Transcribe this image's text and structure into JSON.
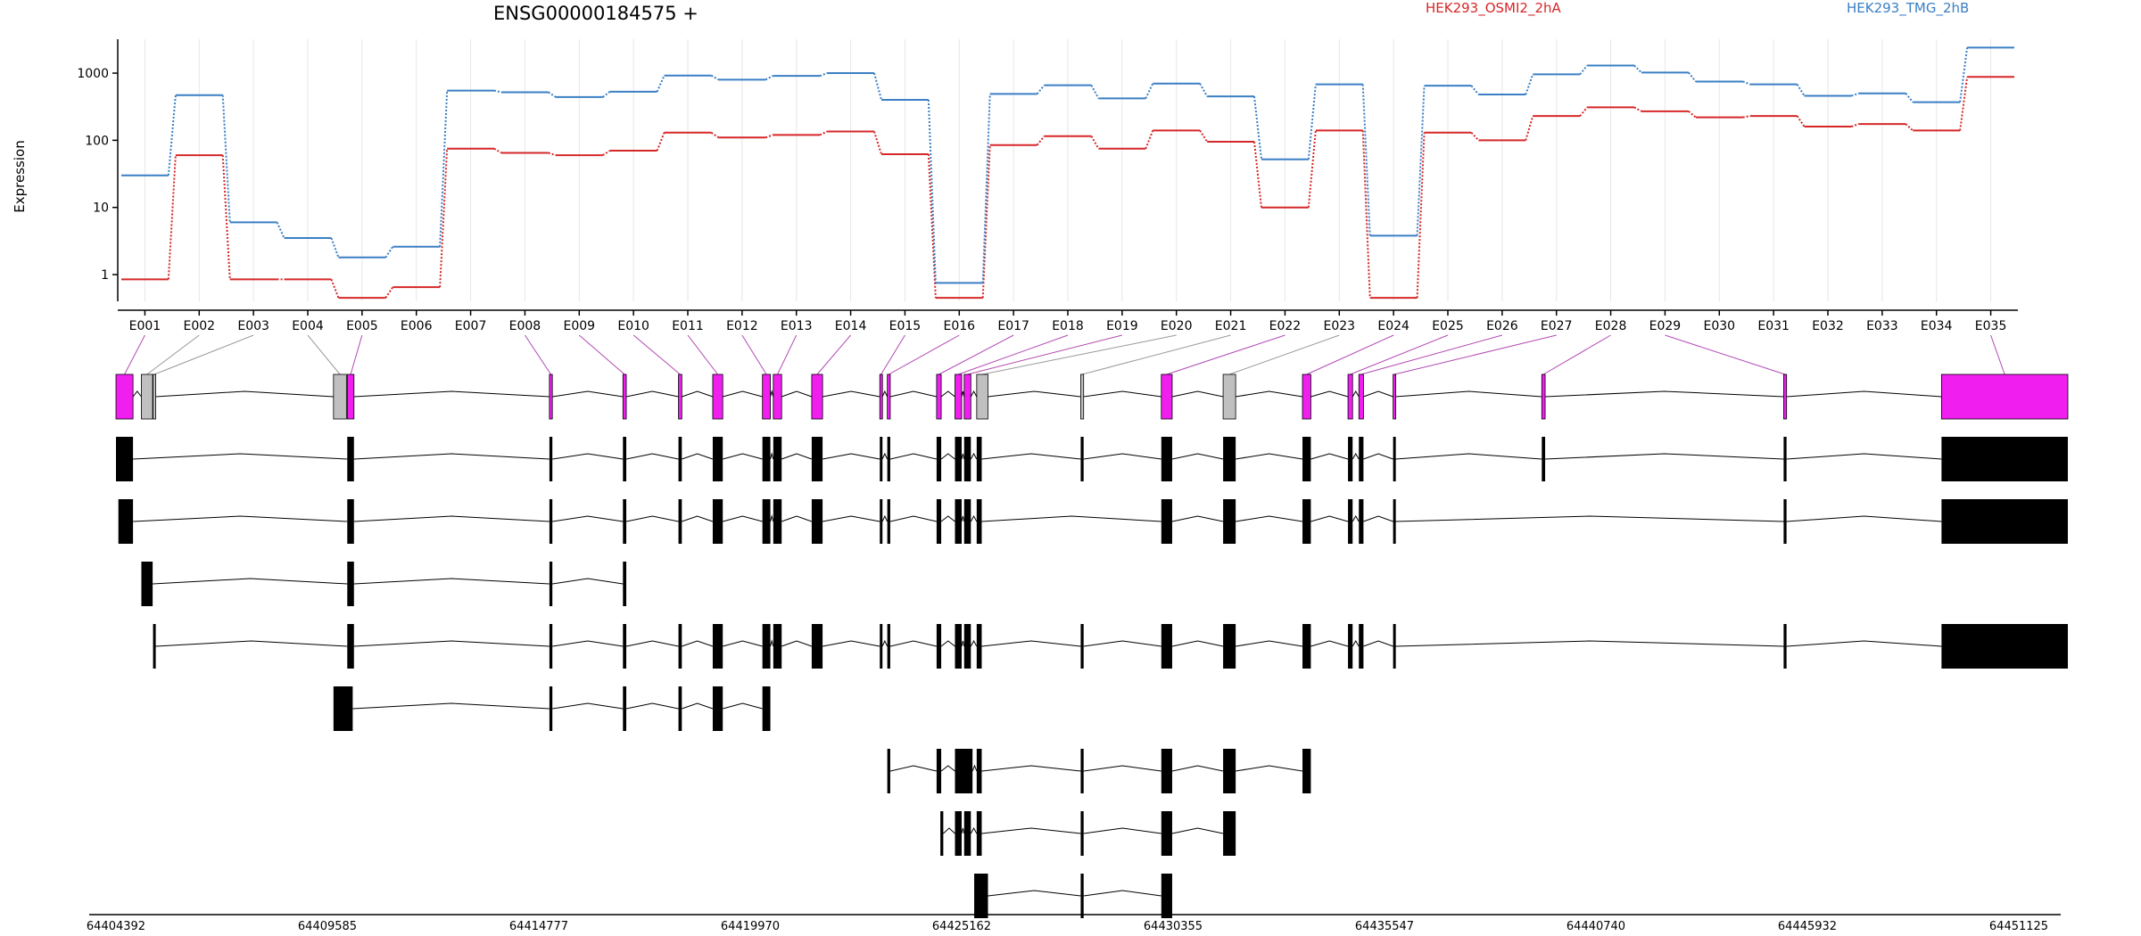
{
  "chart_data": {
    "type": "line",
    "title": "ENSG00000184575 +",
    "ylabel": "Expression",
    "y_scale": "log",
    "y_ticks": [
      "1",
      "10",
      "100",
      "1000"
    ],
    "y_tick_values": [
      1,
      10,
      100,
      1000
    ],
    "ylim": [
      0.4,
      3200
    ],
    "grid": "vertical",
    "legend_placement": "top",
    "exons": [
      "E001",
      "E002",
      "E003",
      "E004",
      "E005",
      "E006",
      "E007",
      "E008",
      "E009",
      "E010",
      "E011",
      "E012",
      "E013",
      "E014",
      "E015",
      "E016",
      "E017",
      "E018",
      "E019",
      "E020",
      "E021",
      "E022",
      "E023",
      "E024",
      "E025",
      "E026",
      "E027",
      "E028",
      "E029",
      "E030",
      "E031",
      "E032",
      "E033",
      "E034",
      "E035"
    ],
    "series": [
      {
        "name": "HEK293_OSMI2_2hA",
        "color": "#d62728",
        "values": [
          0.85,
          60,
          0.85,
          0.85,
          0.45,
          0.65,
          75,
          65,
          60,
          70,
          130,
          110,
          120,
          135,
          62,
          0.45,
          85,
          115,
          75,
          140,
          95,
          10,
          140,
          0.45,
          130,
          100,
          230,
          310,
          270,
          220,
          230,
          160,
          175,
          140,
          880
        ]
      },
      {
        "name": "HEK293_TMG_2hB",
        "color": "#3a7fc4",
        "values": [
          30,
          470,
          6,
          3.5,
          1.8,
          2.6,
          550,
          520,
          440,
          530,
          920,
          800,
          910,
          1000,
          400,
          0.75,
          490,
          660,
          420,
          700,
          450,
          52,
          680,
          3.8,
          650,
          480,
          960,
          1300,
          1020,
          750,
          680,
          460,
          500,
          370,
          2400
        ]
      }
    ],
    "genomic_ticks": [
      64404392,
      64409585,
      64414777,
      64419970,
      64425162,
      64430355,
      64435547,
      64440740,
      64445932,
      64451125
    ],
    "gene_model": {
      "feature_color": "#f01ff0",
      "other_color": "#c0c0c0",
      "features": [
        {
          "start": 64404392,
          "end": 64404800,
          "exon": "E001",
          "highlighted": true
        },
        {
          "start": 64405000,
          "end": 64405270,
          "exon": "E002",
          "highlighted": false
        },
        {
          "start": 64405280,
          "end": 64405340,
          "exon": "E003",
          "highlighted": false
        },
        {
          "start": 64409600,
          "end": 64409910,
          "exon": "E004",
          "highlighted": false
        },
        {
          "start": 64409930,
          "end": 64410090,
          "exon": "E005",
          "highlighted": true
        },
        {
          "start": 64414770,
          "end": 64414840,
          "exon": "E008",
          "highlighted": true
        },
        {
          "start": 64416530,
          "end": 64416610,
          "exon": "E009",
          "highlighted": true
        },
        {
          "start": 64417860,
          "end": 64417940,
          "exon": "E010",
          "highlighted": true
        },
        {
          "start": 64418680,
          "end": 64418920,
          "exon": "E011",
          "highlighted": true
        },
        {
          "start": 64419870,
          "end": 64420060,
          "exon": "E012",
          "highlighted": true
        },
        {
          "start": 64420130,
          "end": 64420330,
          "exon": "E013",
          "highlighted": true
        },
        {
          "start": 64421050,
          "end": 64421310,
          "exon": "E014",
          "highlighted": true
        },
        {
          "start": 64422680,
          "end": 64422740,
          "exon": "E015",
          "highlighted": true
        },
        {
          "start": 64422860,
          "end": 64422930,
          "exon": "E016",
          "highlighted": true
        },
        {
          "start": 64424040,
          "end": 64424150,
          "exon": "E017",
          "highlighted": true
        },
        {
          "start": 64424480,
          "end": 64424640,
          "exon": "E018",
          "highlighted": true
        },
        {
          "start": 64424700,
          "end": 64424860,
          "exon": "E019",
          "highlighted": true
        },
        {
          "start": 64425000,
          "end": 64425270,
          "exon": "E020",
          "highlighted": false
        },
        {
          "start": 64427490,
          "end": 64427560,
          "exon": "E021",
          "highlighted": false
        },
        {
          "start": 64429420,
          "end": 64429680,
          "exon": "E022",
          "highlighted": true
        },
        {
          "start": 64430900,
          "end": 64431200,
          "exon": "E023",
          "highlighted": false
        },
        {
          "start": 64432800,
          "end": 64433000,
          "exon": "E024",
          "highlighted": true
        },
        {
          "start": 64433890,
          "end": 64434000,
          "exon": "E025",
          "highlighted": true
        },
        {
          "start": 64434150,
          "end": 64434260,
          "exon": "E026",
          "highlighted": true
        },
        {
          "start": 64434970,
          "end": 64435030,
          "exon": "E027",
          "highlighted": true
        },
        {
          "start": 64438530,
          "end": 64438610,
          "exon": "E028",
          "highlighted": true
        },
        {
          "start": 64444320,
          "end": 64444390,
          "exon": "E029",
          "highlighted": true
        },
        {
          "start": 64448100,
          "end": 64451125,
          "exon": "E035",
          "highlighted": true
        }
      ],
      "transcripts": [
        [
          [
            64404392,
            64404800
          ],
          [
            64409930,
            64410090
          ],
          [
            64414770,
            64414840
          ],
          [
            64416530,
            64416610
          ],
          [
            64417860,
            64417940
          ],
          [
            64418680,
            64418920
          ],
          [
            64419870,
            64420060
          ],
          [
            64420130,
            64420330
          ],
          [
            64421050,
            64421310
          ],
          [
            64422680,
            64422740
          ],
          [
            64422860,
            64422930
          ],
          [
            64424040,
            64424150
          ],
          [
            64424480,
            64424640
          ],
          [
            64424700,
            64424860
          ],
          [
            64425000,
            64425120
          ],
          [
            64427490,
            64427560
          ],
          [
            64429420,
            64429680
          ],
          [
            64430900,
            64431200
          ],
          [
            64432800,
            64433000
          ],
          [
            64433890,
            64434000
          ],
          [
            64434150,
            64434260
          ],
          [
            64434970,
            64435030
          ],
          [
            64438530,
            64438610
          ],
          [
            64444320,
            64444390
          ],
          [
            64448100,
            64451125
          ]
        ],
        [
          [
            64404450,
            64404800
          ],
          [
            64409930,
            64410090
          ],
          [
            64414770,
            64414840
          ],
          [
            64416530,
            64416610
          ],
          [
            64417860,
            64417940
          ],
          [
            64418680,
            64418920
          ],
          [
            64419870,
            64420060
          ],
          [
            64420130,
            64420330
          ],
          [
            64421050,
            64421310
          ],
          [
            64422680,
            64422740
          ],
          [
            64422860,
            64422930
          ],
          [
            64424040,
            64424150
          ],
          [
            64424480,
            64424640
          ],
          [
            64424700,
            64424860
          ],
          [
            64425000,
            64425120
          ],
          [
            64429420,
            64429680
          ],
          [
            64430900,
            64431200
          ],
          [
            64432800,
            64433000
          ],
          [
            64433890,
            64434000
          ],
          [
            64434150,
            64434260
          ],
          [
            64434970,
            64435030
          ],
          [
            64444320,
            64444390
          ],
          [
            64448100,
            64451125
          ]
        ],
        [
          [
            64405000,
            64405270
          ],
          [
            64409930,
            64410090
          ],
          [
            64414770,
            64414840
          ],
          [
            64416530,
            64416610
          ]
        ],
        [
          [
            64405280,
            64405340
          ],
          [
            64409930,
            64410090
          ],
          [
            64414770,
            64414840
          ],
          [
            64416530,
            64416610
          ],
          [
            64417860,
            64417940
          ],
          [
            64418680,
            64418920
          ],
          [
            64419870,
            64420060
          ],
          [
            64420130,
            64420330
          ],
          [
            64421050,
            64421310
          ],
          [
            64422680,
            64422740
          ],
          [
            64422860,
            64422930
          ],
          [
            64424040,
            64424150
          ],
          [
            64424480,
            64424640
          ],
          [
            64424700,
            64424860
          ],
          [
            64425000,
            64425120
          ],
          [
            64427490,
            64427560
          ],
          [
            64429420,
            64429680
          ],
          [
            64430900,
            64431200
          ],
          [
            64432800,
            64433000
          ],
          [
            64433890,
            64434000
          ],
          [
            64434150,
            64434260
          ],
          [
            64434970,
            64435030
          ],
          [
            64444320,
            64444390
          ],
          [
            64448100,
            64451125
          ]
        ],
        [
          [
            64409600,
            64410060
          ],
          [
            64414770,
            64414840
          ],
          [
            64416530,
            64416610
          ],
          [
            64417860,
            64417940
          ],
          [
            64418680,
            64418920
          ],
          [
            64419870,
            64420060
          ]
        ],
        [
          [
            64422860,
            64422930
          ],
          [
            64424040,
            64424150
          ],
          [
            64424480,
            64424900
          ],
          [
            64425000,
            64425120
          ],
          [
            64427490,
            64427560
          ],
          [
            64429420,
            64429680
          ],
          [
            64430900,
            64431200
          ],
          [
            64432800,
            64433000
          ]
        ],
        [
          [
            64424130,
            64424200
          ],
          [
            64424480,
            64424640
          ],
          [
            64424700,
            64424860
          ],
          [
            64425000,
            64425120
          ],
          [
            64427490,
            64427560
          ],
          [
            64429420,
            64429680
          ],
          [
            64430900,
            64431200
          ]
        ],
        [
          [
            64424940,
            64425270
          ],
          [
            64427490,
            64427560
          ],
          [
            64429420,
            64429680
          ]
        ]
      ]
    }
  }
}
